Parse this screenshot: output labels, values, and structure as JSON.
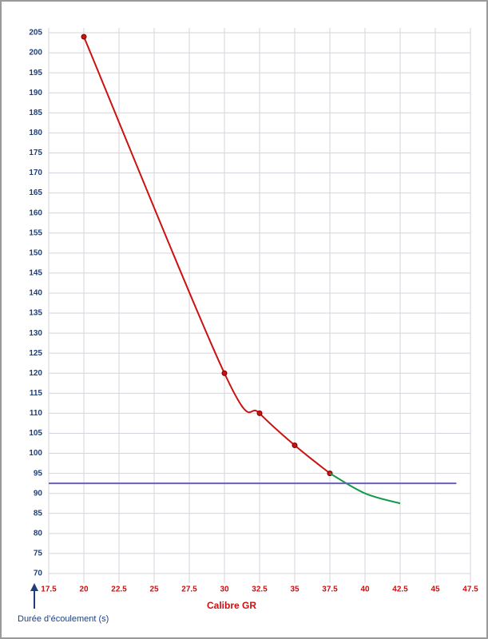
{
  "chart_data": {
    "type": "line",
    "x_label": "Calibre GR",
    "y_label": "Durée d’écoulement (s)",
    "xlim": [
      17.5,
      47.5
    ],
    "ylim": [
      70,
      205
    ],
    "xticks": [
      17.5,
      20,
      22.5,
      25,
      27.5,
      30,
      32.5,
      35,
      37.5,
      40,
      42.5,
      45,
      47.5
    ],
    "yticks": [
      70,
      75,
      80,
      85,
      90,
      95,
      100,
      105,
      110,
      115,
      120,
      125,
      130,
      135,
      140,
      145,
      150,
      155,
      160,
      165,
      170,
      175,
      180,
      185,
      190,
      195,
      200,
      205
    ],
    "grid": true,
    "smooth": true,
    "series": [
      {
        "color": "#cc1111",
        "markers": true,
        "x": [
          20,
          30,
          32.5,
          35,
          37.5
        ],
        "values": [
          204,
          120,
          110,
          102,
          95
        ]
      },
      {
        "color": "#129a4a",
        "markers": false,
        "x": [
          37.5,
          40,
          42.5
        ],
        "values": [
          95,
          90,
          87.5
        ]
      },
      {
        "color": "#6b5fb8",
        "markers": false,
        "x": [
          17.5,
          46.5
        ],
        "values": [
          92.5,
          92.5
        ]
      }
    ]
  }
}
